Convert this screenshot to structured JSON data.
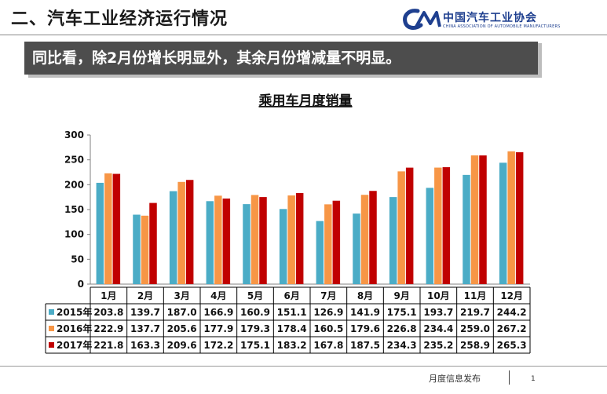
{
  "header": {
    "title": "二、汽车工业经济运行情况",
    "logo_cn": "中国汽车工业协会",
    "logo_en": "CHINA ASSOCIATION OF AUTOMOBILE MANUFACTURERS"
  },
  "banner": {
    "text": "同比看，除2月份增长明显外，其余月份增减量不明显。"
  },
  "footer": {
    "text": "月度信息发布",
    "page": "1"
  },
  "colors": {
    "s2015": "#4bacc6",
    "s2016": "#f79646",
    "s2017": "#c00000"
  },
  "chart_data": {
    "type": "bar",
    "title": "乘用车月度销量",
    "categories": [
      "1月",
      "2月",
      "3月",
      "4月",
      "5月",
      "6月",
      "7月",
      "8月",
      "9月",
      "10月",
      "11月",
      "12月"
    ],
    "series": [
      {
        "name": "2015年",
        "values": [
          203.8,
          139.7,
          187.0,
          166.9,
          160.9,
          151.1,
          126.9,
          141.9,
          175.1,
          193.7,
          219.7,
          244.2
        ]
      },
      {
        "name": "2016年",
        "values": [
          222.9,
          137.7,
          205.6,
          177.9,
          179.3,
          178.4,
          160.5,
          179.6,
          226.8,
          234.4,
          259.0,
          267.2
        ]
      },
      {
        "name": "2017年",
        "values": [
          221.8,
          163.3,
          209.6,
          172.2,
          175.1,
          183.2,
          167.8,
          187.5,
          234.3,
          235.2,
          258.9,
          265.3
        ]
      }
    ],
    "ylim": [
      0,
      300
    ],
    "yticks": [
      0,
      50,
      100,
      150,
      200,
      250,
      300
    ],
    "legend": "table-below",
    "grid": false
  }
}
